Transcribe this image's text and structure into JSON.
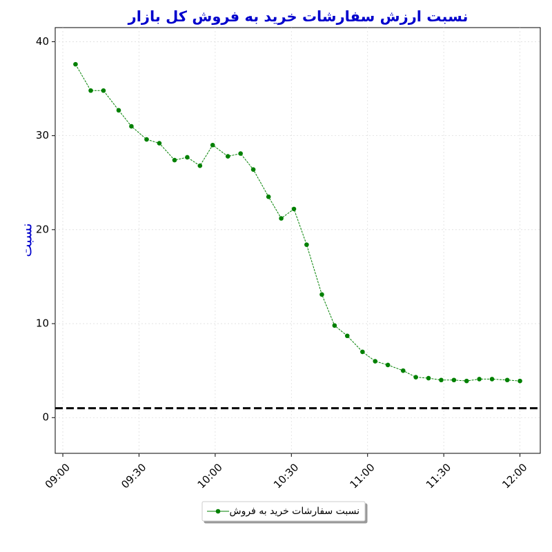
{
  "chart_data": {
    "type": "line",
    "title": "نسبت ارزش سفارشات خرید به فروش کل بازار",
    "y_label": "نسبت",
    "x": [
      "09:05",
      "09:11",
      "09:16",
      "09:22",
      "09:27",
      "09:33",
      "09:38",
      "09:44",
      "09:49",
      "09:54",
      "09:59",
      "10:05",
      "10:10",
      "10:15",
      "10:21",
      "10:26",
      "10:31",
      "10:36",
      "10:42",
      "10:47",
      "10:52",
      "10:58",
      "11:03",
      "11:08",
      "11:14",
      "11:19",
      "11:24",
      "11:29",
      "11:34",
      "11:39",
      "11:44",
      "11:49",
      "11:55",
      "12:00"
    ],
    "series": [
      {
        "name": "نسبت سفارشات خرید به فروش",
        "color": "#008000",
        "values": [
          37.6,
          34.8,
          34.8,
          32.7,
          31.0,
          29.6,
          29.2,
          27.4,
          27.7,
          26.8,
          29.0,
          27.8,
          28.1,
          26.4,
          23.5,
          21.2,
          22.2,
          18.4,
          13.1,
          9.8,
          8.7,
          7.0,
          6.0,
          5.6,
          5.0,
          4.3,
          4.2,
          4.0,
          4.0,
          3.9,
          4.1,
          4.1,
          4.0,
          3.9
        ]
      }
    ],
    "reference_line": {
      "value": 1,
      "color": "#000000",
      "style": "dashed"
    },
    "xlim": [
      "08:57",
      "12:08"
    ],
    "xticks": [
      "09:00",
      "09:30",
      "10:00",
      "10:30",
      "11:00",
      "11:30",
      "12:00"
    ],
    "ylim": [
      -3.8,
      41.5
    ],
    "yticks": [
      0,
      10,
      20,
      30,
      40
    ],
    "grid": true,
    "legend": "bottom"
  }
}
